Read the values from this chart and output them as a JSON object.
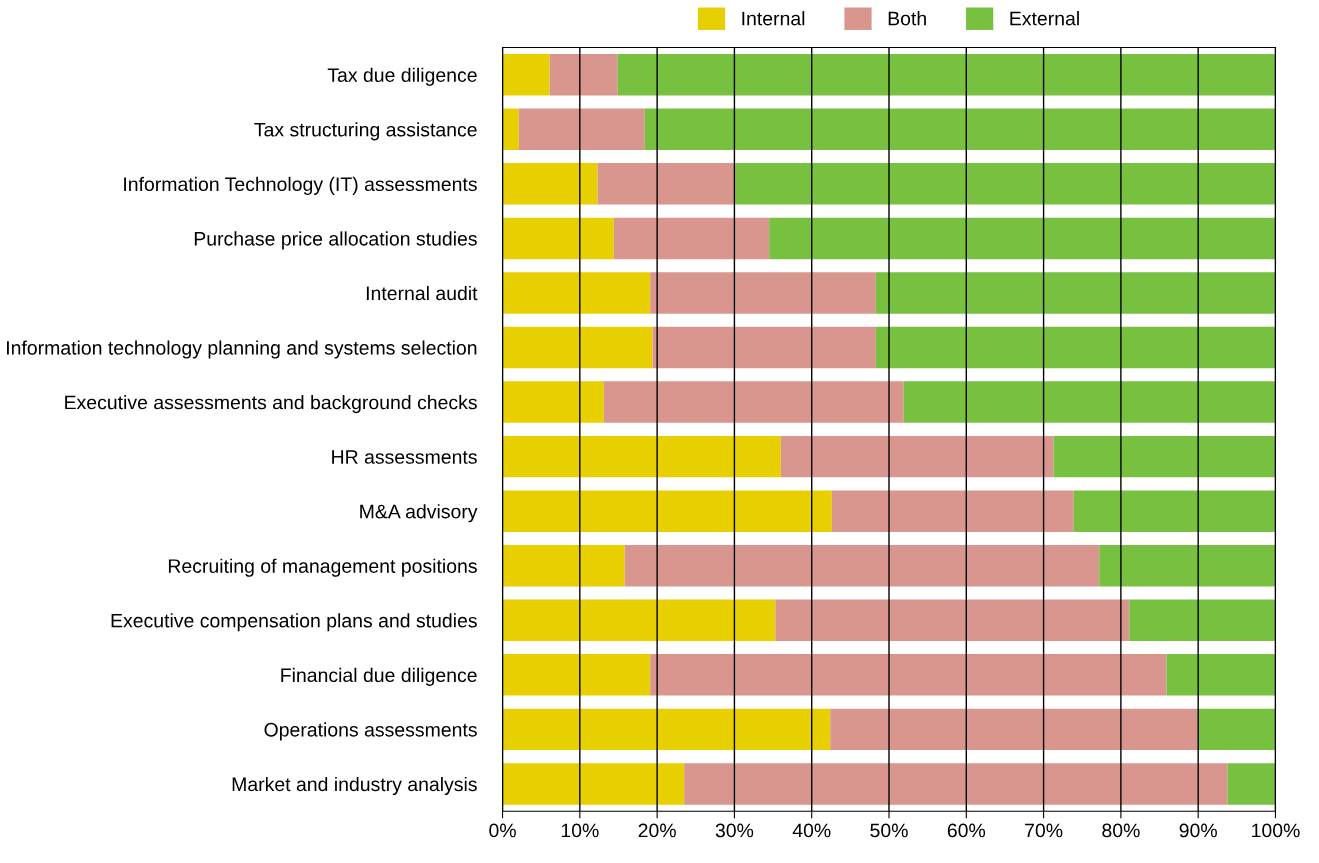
{
  "chart_data": {
    "type": "bar",
    "orientation": "horizontal",
    "stacked": true,
    "categories": [
      "Tax due diligence",
      "Tax structuring assistance",
      "Information Technology (IT) assessments",
      "Purchase price allocation studies",
      "Internal audit",
      "Information technology planning and systems selection",
      "Executive assessments and background checks",
      "HR assessments",
      "M&A advisory",
      "Recruiting of management positions",
      "Executive compensation plans and studies",
      "Financial due diligence",
      "Operations assessments",
      "Market and industry analysis"
    ],
    "series": [
      {
        "name": "Internal",
        "color": "#e8d000",
        "values": [
          6.1,
          2.1,
          12.3,
          14.4,
          19.1,
          19.4,
          13.1,
          36.0,
          42.6,
          15.8,
          35.3,
          19.1,
          42.4,
          23.5
        ]
      },
      {
        "name": "Both",
        "color": "#d9968e",
        "values": [
          8.8,
          16.3,
          17.8,
          20.1,
          29.2,
          28.9,
          38.8,
          35.3,
          31.3,
          61.4,
          45.8,
          66.8,
          47.6,
          70.3
        ]
      },
      {
        "name": "External",
        "color": "#78c040",
        "values": [
          85.1,
          81.6,
          69.9,
          65.5,
          51.7,
          51.7,
          48.1,
          28.7,
          26.1,
          22.8,
          18.9,
          14.1,
          10.0,
          6.2
        ]
      }
    ],
    "xlim": [
      0,
      100
    ],
    "xticks": [
      {
        "value": 0,
        "label": "0%"
      },
      {
        "value": 10,
        "label": "10%"
      },
      {
        "value": 20,
        "label": "20%"
      },
      {
        "value": 30,
        "label": "30%"
      },
      {
        "value": 40,
        "label": "40%"
      },
      {
        "value": 50,
        "label": "50%"
      },
      {
        "value": 60,
        "label": "60%"
      },
      {
        "value": 70,
        "label": "70%"
      },
      {
        "value": 80,
        "label": "80%"
      },
      {
        "value": 90,
        "label": "90%"
      },
      {
        "value": 100,
        "label": "100%"
      }
    ],
    "grid": "x",
    "legend": "top"
  }
}
